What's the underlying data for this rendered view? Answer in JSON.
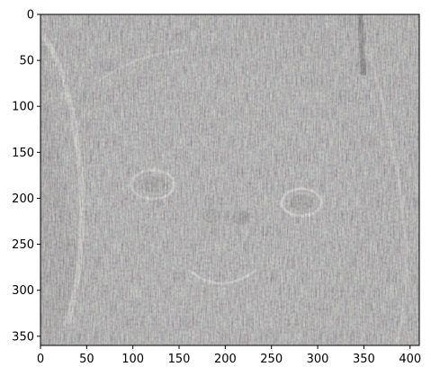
{
  "chart_data": {
    "type": "heatmap",
    "title": "",
    "xlabel": "",
    "ylabel": "",
    "xlim": [
      0,
      410
    ],
    "ylim": [
      360,
      0
    ],
    "x_ticks": [
      0,
      50,
      100,
      150,
      200,
      250,
      300,
      350,
      400
    ],
    "y_ticks": [
      0,
      50,
      100,
      150,
      200,
      250,
      300,
      350
    ],
    "x_tick_labels": [
      "0",
      "50",
      "100",
      "150",
      "200",
      "250",
      "300",
      "350",
      "400"
    ],
    "y_tick_labels": [
      "0",
      "50",
      "100",
      "150",
      "200",
      "250",
      "300",
      "350"
    ],
    "grid": false,
    "image_content": "edge-filtered grayscale photograph of a long-haired dog face (embossed effect)"
  },
  "colors": {
    "base_gray": "#8f8d8c",
    "highlight": "#e8e4dc",
    "shadow": "#4a4744",
    "accent_warm": "#c9b89a"
  }
}
